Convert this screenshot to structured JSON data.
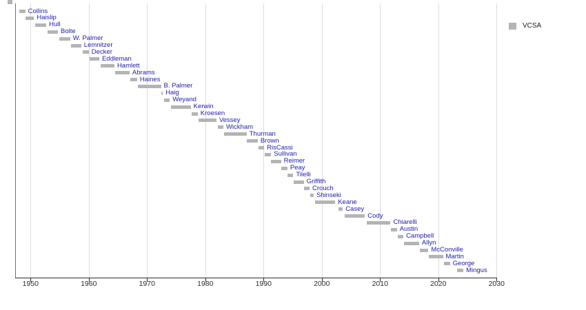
{
  "legend": {
    "label": "VCSA"
  },
  "colors": {
    "bar": "#b4b4b4",
    "label_text": "#1c1ca8",
    "gridline": "#dcdcdc",
    "spine": "#6e6e6e",
    "axis": "#2b2b2b",
    "background": "#ffffff"
  },
  "chart_data": {
    "type": "bar",
    "subtype": "gantt-timeline",
    "title": "",
    "xlabel": "",
    "ylabel": "",
    "legend_position": "top-right",
    "grid": true,
    "x_axis": {
      "min": 1947.4,
      "max": 2030.6,
      "tick_years": [
        1950,
        1960,
        1970,
        1980,
        1990,
        2000,
        2010,
        2020,
        2030
      ]
    },
    "series": [
      {
        "label": "Collins",
        "start": 1948.1,
        "end": 1949.1
      },
      {
        "label": "Haislip",
        "start": 1949.1,
        "end": 1950.6
      },
      {
        "label": "Hull",
        "start": 1950.8,
        "end": 1952.7
      },
      {
        "label": "Bolte",
        "start": 1952.9,
        "end": 1954.7
      },
      {
        "label": "W. Palmer",
        "start": 1954.9,
        "end": 1956.8
      },
      {
        "label": "Lemnitzer",
        "start": 1957.0,
        "end": 1958.7
      },
      {
        "label": "Decker",
        "start": 1959.0,
        "end": 1960.0
      },
      {
        "label": "Eddleman",
        "start": 1960.1,
        "end": 1961.8
      },
      {
        "label": "Hamlett",
        "start": 1962.0,
        "end": 1964.4
      },
      {
        "label": "Abrams",
        "start": 1964.5,
        "end": 1967.0
      },
      {
        "label": "Haines",
        "start": 1967.1,
        "end": 1968.3
      },
      {
        "label": "B. Palmer",
        "start": 1968.4,
        "end": 1972.4
      },
      {
        "label": "Haig",
        "start": 1972.4,
        "end": 1972.7
      },
      {
        "label": "Weyand",
        "start": 1972.9,
        "end": 1973.9
      },
      {
        "label": "Kerwin",
        "start": 1974.1,
        "end": 1977.5
      },
      {
        "label": "Kroesen",
        "start": 1977.7,
        "end": 1978.7
      },
      {
        "label": "Vessey",
        "start": 1978.8,
        "end": 1981.9
      },
      {
        "label": "Wickham",
        "start": 1982.1,
        "end": 1983.1
      },
      {
        "label": "Thurman",
        "start": 1983.2,
        "end": 1987.1
      },
      {
        "label": "Brown",
        "start": 1987.1,
        "end": 1989.0
      },
      {
        "label": "RisCassi",
        "start": 1989.1,
        "end": 1990.1
      },
      {
        "label": "Sullivan",
        "start": 1990.2,
        "end": 1991.3
      },
      {
        "label": "Reimer",
        "start": 1991.3,
        "end": 1993.0
      },
      {
        "label": "Peay",
        "start": 1993.1,
        "end": 1994.1
      },
      {
        "label": "Tilelli",
        "start": 1994.1,
        "end": 1995.1
      },
      {
        "label": "Griffith",
        "start": 1995.2,
        "end": 1996.9
      },
      {
        "label": "Crouch",
        "start": 1997.0,
        "end": 1997.9
      },
      {
        "label": "Shinseki",
        "start": 1998.0,
        "end": 1998.6
      },
      {
        "label": "Keane",
        "start": 1998.8,
        "end": 2002.3
      },
      {
        "label": "Casey",
        "start": 2002.9,
        "end": 2003.6
      },
      {
        "label": "Cody",
        "start": 2003.9,
        "end": 2007.4
      },
      {
        "label": "Chiarelli",
        "start": 2007.7,
        "end": 2011.8
      },
      {
        "label": "Austin",
        "start": 2011.9,
        "end": 2012.9
      },
      {
        "label": "Campbell",
        "start": 2013.0,
        "end": 2014.0
      },
      {
        "label": "Allyn",
        "start": 2014.1,
        "end": 2016.7
      },
      {
        "label": "McConville",
        "start": 2016.8,
        "end": 2018.3
      },
      {
        "label": "Martin",
        "start": 2018.4,
        "end": 2020.8
      },
      {
        "label": "George",
        "start": 2021.0,
        "end": 2022.0
      },
      {
        "label": "Mingus",
        "start": 2023.2,
        "end": 2024.3
      }
    ]
  }
}
